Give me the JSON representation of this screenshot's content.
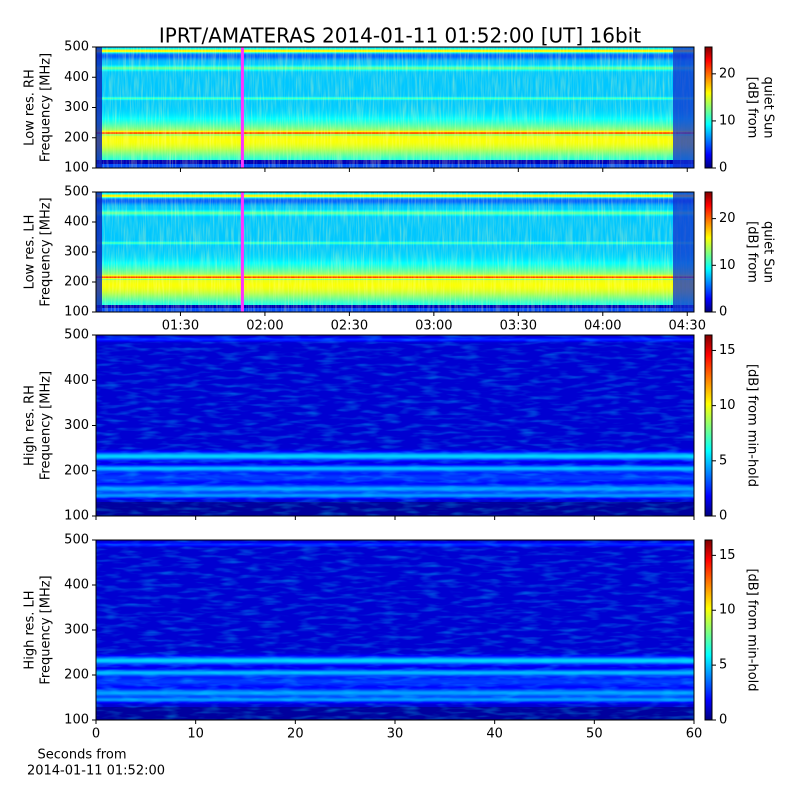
{
  "chart_data": [
    {
      "type": "heatmap",
      "title": "IPRT/AMATERAS 2014-01-11 01:52:00 [UT]   16bit",
      "ylabel": [
        "Low res. RH",
        "Frequency [MHz]"
      ],
      "ylim": [
        100,
        500
      ],
      "yticks": [
        100,
        200,
        300,
        400,
        500
      ],
      "xlim": [
        1.0,
        4.54
      ],
      "xticks": [
        {
          "value": 1.5,
          "label": "01:30"
        },
        {
          "value": 2.0,
          "label": "02:00"
        },
        {
          "value": 2.5,
          "label": "02:30"
        },
        {
          "value": 3.0,
          "label": "03:00"
        },
        {
          "value": 3.5,
          "label": "03:30"
        },
        {
          "value": 4.0,
          "label": "04:00"
        },
        {
          "value": 4.5,
          "label": "04:30"
        }
      ],
      "show_xticklabels": false,
      "marker_x": 1.8667,
      "marker_color": "#ff33ff",
      "colorbar": {
        "label": [
          "[dB] from",
          "quiet Sun"
        ],
        "clim": [
          0,
          25.7
        ],
        "ticks": [
          0,
          10,
          20
        ]
      }
    },
    {
      "type": "heatmap",
      "ylabel": [
        "Low res. LH",
        "Frequency [MHz]"
      ],
      "ylim": [
        100,
        500
      ],
      "yticks": [
        100,
        200,
        300,
        400,
        500
      ],
      "xlim": [
        1.0,
        4.54
      ],
      "xticks": [
        {
          "value": 1.5,
          "label": "01:30"
        },
        {
          "value": 2.0,
          "label": "02:00"
        },
        {
          "value": 2.5,
          "label": "02:30"
        },
        {
          "value": 3.0,
          "label": "03:00"
        },
        {
          "value": 3.5,
          "label": "03:30"
        },
        {
          "value": 4.0,
          "label": "04:00"
        },
        {
          "value": 4.5,
          "label": "04:30"
        }
      ],
      "show_xticklabels": true,
      "marker_x": 1.8667,
      "marker_color": "#ff33ff",
      "colorbar": {
        "label": [
          "[dB] from",
          "quiet Sun"
        ],
        "clim": [
          0,
          25.7
        ],
        "ticks": [
          0,
          10,
          20
        ]
      }
    },
    {
      "type": "heatmap",
      "ylabel": [
        "High res. RH",
        "Frequency [MHz]"
      ],
      "ylim": [
        100,
        500
      ],
      "yticks": [
        100,
        200,
        300,
        400,
        500
      ],
      "xlim": [
        0,
        60
      ],
      "xticks": [
        0,
        10,
        20,
        30,
        40,
        50,
        60
      ],
      "show_xticklabels": false,
      "colorbar": {
        "label": [
          "[dB] from min-hold"
        ],
        "clim": [
          0,
          16.4
        ],
        "ticks": [
          0,
          5,
          10,
          15
        ]
      }
    },
    {
      "type": "heatmap",
      "ylabel": [
        "High res. LH",
        "Frequency [MHz]"
      ],
      "ylim": [
        100,
        500
      ],
      "yticks": [
        100,
        200,
        300,
        400,
        500
      ],
      "xlim": [
        0,
        60
      ],
      "xticks": [
        0,
        10,
        20,
        30,
        40,
        50,
        60
      ],
      "show_xticklabels": true,
      "xlabel": [
        "Seconds from",
        "2014-01-11 01:52:00"
      ],
      "colorbar": {
        "label": [
          "[dB] from min-hold"
        ],
        "clim": [
          0,
          16.4
        ],
        "ticks": [
          0,
          5,
          10,
          15
        ]
      }
    }
  ]
}
